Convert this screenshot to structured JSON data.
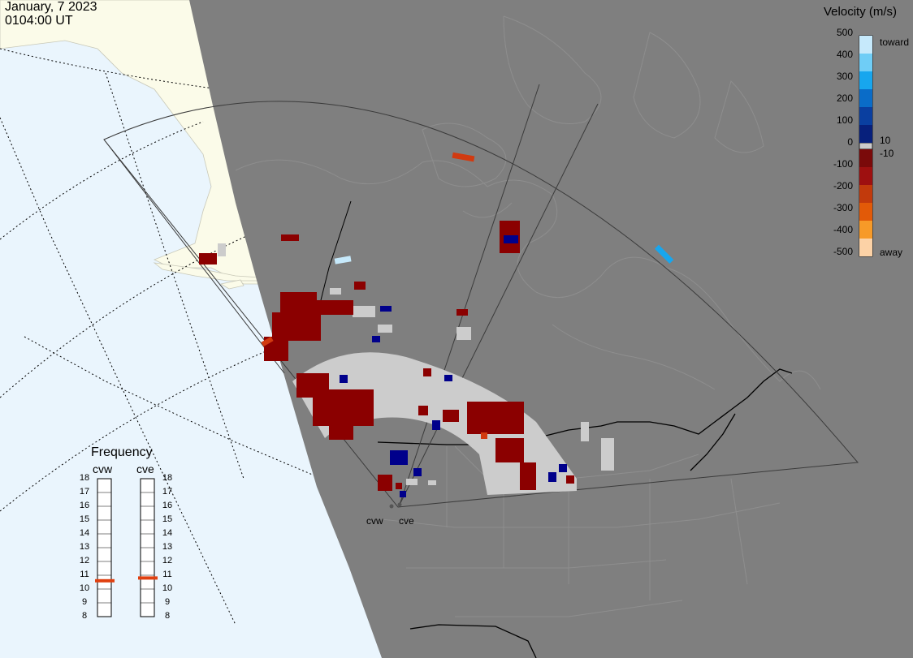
{
  "header": {
    "date": "January, 7 2023",
    "time": "0104:00 UT"
  },
  "colorbar": {
    "title": "Velocity (m/s)",
    "ticks": [
      "500",
      "400",
      "300",
      "200",
      "100",
      "0",
      "-100",
      "-200",
      "-300",
      "-400",
      "-500"
    ],
    "side_labels": {
      "top": "toward",
      "pos": "10",
      "neg": "-10",
      "bottom": "away"
    },
    "colors_toward": [
      "#c6e9fb",
      "#6fcdf6",
      "#17a6ee",
      "#0a6cc8",
      "#0a3fa0",
      "#07207c"
    ],
    "colors_away": [
      "#7a0a0a",
      "#9e1010",
      "#c23a0c",
      "#e25a08",
      "#f79a28",
      "#fcd2a6"
    ],
    "neutral": "#cccccc"
  },
  "frequency": {
    "title": "Frequency",
    "radars": [
      {
        "name": "cvw",
        "current_mhz": 10.6
      },
      {
        "name": "cve",
        "current_mhz": 10.8
      }
    ],
    "ticks": [
      "18",
      "17",
      "16",
      "15",
      "14",
      "13",
      "12",
      "11",
      "10",
      "9",
      "8"
    ]
  },
  "sites": [
    "cvw",
    "cve"
  ],
  "colors": {
    "land_day": "#fbfbe9",
    "ocean_day": "#eaf5fd",
    "night": "#7f7f7f",
    "echo_dark_red": "#8b0000",
    "echo_gray": "#cccccc",
    "echo_blue": "#00008b"
  }
}
